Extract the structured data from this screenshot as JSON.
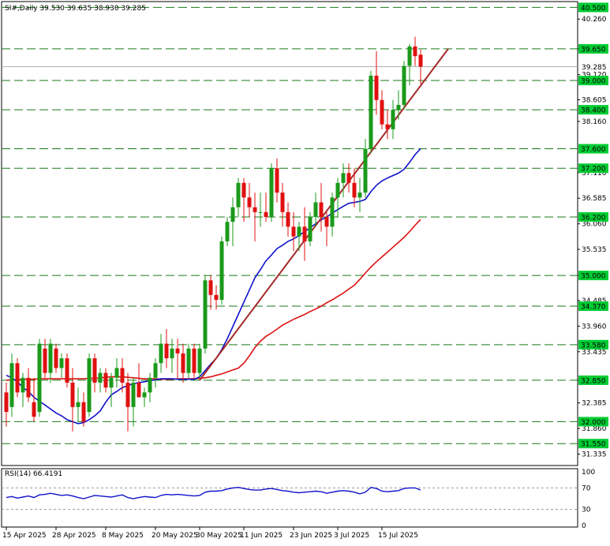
{
  "chart_data": {
    "type": "candlestick",
    "title": "SI#,Daily  39.530 39.635 38.930 39.285",
    "price_axis": {
      "ylim": [
        31.1,
        40.62
      ],
      "ticks": [
        "40.260",
        "39.650",
        "39.120",
        "38.605",
        "38.160",
        "37.110",
        "36.585",
        "36.060",
        "35.535",
        "35.000",
        "34.485",
        "33.960",
        "33.435",
        "32.850",
        "32.385",
        "31.860",
        "31.335"
      ]
    },
    "levels": [
      {
        "value": 40.5,
        "label": "40.500"
      },
      {
        "value": 39.65,
        "label": "39.650"
      },
      {
        "value": 39.0,
        "label": "39.000"
      },
      {
        "value": 38.4,
        "label": "38.400"
      },
      {
        "value": 37.6,
        "label": "37.600"
      },
      {
        "value": 37.2,
        "label": "37.200"
      },
      {
        "value": 36.2,
        "label": "36.200"
      },
      {
        "value": 35.0,
        "label": "35.000"
      },
      {
        "value": 34.37,
        "label": "34.370"
      },
      {
        "value": 33.58,
        "label": "33.580"
      },
      {
        "value": 32.85,
        "label": "32.850"
      },
      {
        "value": 32.0,
        "label": "32.000"
      },
      {
        "value": 31.55,
        "label": "31.550"
      }
    ],
    "current_price": {
      "value": 39.285,
      "label": "39.285"
    },
    "x_labels": [
      {
        "index": 0,
        "label": "15 Apr 2025"
      },
      {
        "index": 9,
        "label": "28 Apr 2025"
      },
      {
        "index": 18,
        "label": "8 May 2025"
      },
      {
        "index": 27,
        "label": "20 May 2025"
      },
      {
        "index": 35,
        "label": "30 May 2025"
      },
      {
        "index": 43,
        "label": "11 Jun 2025"
      },
      {
        "index": 52,
        "label": "23 Jun 2025"
      },
      {
        "index": 60,
        "label": "3 Jul 2025"
      },
      {
        "index": 68,
        "label": "15 Jul 2025"
      }
    ],
    "candles": [
      [
        32.6,
        32.8,
        31.9,
        32.2
      ],
      [
        32.3,
        33.4,
        32.1,
        33.2
      ],
      [
        33.2,
        33.3,
        32.5,
        32.6
      ],
      [
        32.6,
        33.0,
        32.3,
        32.9
      ],
      [
        32.9,
        33.1,
        32.4,
        32.5
      ],
      [
        32.4,
        32.9,
        32.0,
        32.1
      ],
      [
        32.2,
        33.7,
        32.1,
        33.6
      ],
      [
        33.5,
        33.7,
        32.9,
        33.0
      ],
      [
        33.0,
        33.7,
        32.8,
        33.6
      ],
      [
        33.5,
        33.6,
        33.0,
        33.1
      ],
      [
        33.1,
        33.4,
        32.9,
        33.3
      ],
      [
        33.3,
        33.4,
        32.7,
        32.8
      ],
      [
        32.8,
        33.1,
        31.8,
        32.3
      ],
      [
        32.3,
        32.7,
        32.0,
        32.4
      ],
      [
        32.4,
        32.6,
        31.9,
        32.0
      ],
      [
        32.2,
        33.4,
        32.1,
        33.3
      ],
      [
        33.3,
        33.4,
        32.6,
        32.8
      ],
      [
        32.8,
        33.1,
        32.6,
        33.0
      ],
      [
        33.0,
        33.1,
        32.6,
        32.7
      ],
      [
        32.7,
        33.0,
        32.3,
        32.9
      ],
      [
        32.9,
        33.3,
        32.7,
        33.1
      ],
      [
        33.1,
        33.3,
        32.6,
        32.8
      ],
      [
        32.8,
        33.0,
        31.8,
        32.3
      ],
      [
        32.3,
        32.9,
        31.9,
        32.8
      ],
      [
        32.8,
        33.2,
        32.5,
        32.5
      ],
      [
        32.5,
        32.7,
        32.3,
        32.6
      ],
      [
        32.6,
        33.0,
        32.4,
        32.9
      ],
      [
        32.9,
        33.3,
        32.7,
        33.2
      ],
      [
        33.2,
        33.8,
        33.0,
        33.6
      ],
      [
        33.6,
        33.9,
        33.1,
        33.3
      ],
      [
        33.3,
        33.7,
        33.0,
        33.5
      ],
      [
        33.5,
        33.7,
        32.9,
        33.4
      ],
      [
        33.4,
        33.6,
        32.8,
        33.0
      ],
      [
        33.0,
        33.6,
        32.9,
        33.5
      ],
      [
        33.5,
        33.6,
        32.9,
        33.0
      ],
      [
        33.0,
        33.6,
        32.9,
        33.5
      ],
      [
        33.5,
        35.0,
        33.4,
        34.9
      ],
      [
        34.9,
        35.0,
        34.3,
        34.6
      ],
      [
        34.6,
        34.8,
        34.3,
        34.5
      ],
      [
        34.5,
        35.8,
        34.4,
        35.7
      ],
      [
        35.7,
        36.2,
        35.6,
        36.1
      ],
      [
        36.1,
        36.6,
        35.6,
        36.4
      ],
      [
        36.4,
        37.0,
        36.2,
        36.9
      ],
      [
        36.9,
        37.0,
        36.1,
        36.6
      ],
      [
        36.6,
        36.9,
        36.2,
        36.4
      ],
      [
        36.4,
        36.7,
        35.7,
        36.3
      ],
      [
        36.3,
        36.7,
        36.0,
        36.3
      ],
      [
        36.3,
        36.7,
        36.1,
        36.2
      ],
      [
        36.2,
        37.3,
        36.1,
        37.2
      ],
      [
        37.2,
        37.4,
        36.5,
        36.7
      ],
      [
        36.7,
        36.9,
        36.0,
        36.3
      ],
      [
        36.3,
        36.5,
        35.8,
        36.0
      ],
      [
        36.0,
        36.3,
        35.5,
        35.8
      ],
      [
        35.8,
        36.1,
        35.5,
        36.0
      ],
      [
        36.0,
        36.4,
        35.3,
        35.7
      ],
      [
        35.7,
        36.3,
        35.6,
        36.2
      ],
      [
        36.2,
        36.7,
        36.0,
        36.5
      ],
      [
        36.5,
        36.9,
        35.9,
        36.2
      ],
      [
        36.2,
        36.3,
        35.6,
        36.0
      ],
      [
        36.0,
        36.7,
        35.8,
        36.6
      ],
      [
        36.6,
        37.0,
        36.2,
        36.9
      ],
      [
        36.9,
        37.3,
        36.6,
        37.1
      ],
      [
        37.1,
        37.3,
        36.7,
        36.9
      ],
      [
        36.9,
        37.2,
        36.4,
        36.6
      ],
      [
        36.6,
        37.0,
        36.3,
        36.7
      ],
      [
        36.7,
        37.8,
        36.6,
        37.6
      ],
      [
        37.6,
        39.2,
        37.5,
        39.1
      ],
      [
        39.1,
        39.6,
        38.3,
        38.6
      ],
      [
        38.6,
        38.8,
        38.0,
        38.1
      ],
      [
        38.1,
        38.4,
        37.8,
        38.0
      ],
      [
        38.0,
        38.6,
        37.8,
        38.4
      ],
      [
        38.4,
        38.8,
        38.2,
        38.5
      ],
      [
        38.5,
        39.4,
        38.4,
        39.3
      ],
      [
        39.3,
        39.75,
        38.9,
        39.7
      ],
      [
        39.7,
        39.9,
        39.3,
        39.5
      ],
      [
        39.53,
        39.635,
        38.93,
        39.285
      ]
    ],
    "ma_fast": [
      32.95,
      32.9,
      32.82,
      32.7,
      32.62,
      32.5,
      32.42,
      32.34,
      32.26,
      32.18,
      32.12,
      32.04,
      32.0,
      31.96,
      31.98,
      32.04,
      32.12,
      32.22,
      32.4,
      32.55,
      32.62,
      32.7,
      32.74,
      32.78,
      32.8,
      32.82,
      32.84,
      32.86,
      32.88,
      32.88,
      32.88,
      32.87,
      32.87,
      32.87,
      32.87,
      32.92,
      33.05,
      33.18,
      33.3,
      33.48,
      33.7,
      33.95,
      34.2,
      34.45,
      34.7,
      34.95,
      35.12,
      35.3,
      35.42,
      35.55,
      35.62,
      35.7,
      35.75,
      35.82,
      35.9,
      35.98,
      36.06,
      36.14,
      36.2,
      36.28,
      36.35,
      36.42,
      36.48,
      36.5,
      36.52,
      36.56,
      36.72,
      36.85,
      36.94,
      37.0,
      37.05,
      37.1,
      37.18,
      37.32,
      37.48,
      37.6
    ],
    "ma_slow": [
      32.85,
      32.86,
      32.86,
      32.87,
      32.87,
      32.87,
      32.88,
      32.88,
      32.88,
      32.88,
      32.88,
      32.88,
      32.88,
      32.88,
      32.88,
      32.89,
      32.89,
      32.9,
      32.91,
      32.92,
      32.92,
      32.92,
      32.91,
      32.9,
      32.89,
      32.88,
      32.88,
      32.88,
      32.87,
      32.87,
      32.87,
      32.88,
      32.88,
      32.88,
      32.88,
      32.89,
      32.9,
      32.92,
      32.95,
      32.98,
      33.02,
      33.06,
      33.1,
      33.2,
      33.35,
      33.52,
      33.65,
      33.75,
      33.82,
      33.9,
      33.98,
      34.04,
      34.1,
      34.15,
      34.2,
      34.26,
      34.31,
      34.37,
      34.44,
      34.5,
      34.57,
      34.64,
      34.72,
      34.8,
      34.92,
      35.05,
      35.17,
      35.28,
      35.38,
      35.48,
      35.58,
      35.68,
      35.78,
      35.9,
      36.03,
      36.15
    ],
    "trendline": {
      "from_index": 35,
      "from_value": 32.85,
      "to_index": 80,
      "to_value": 39.65
    },
    "rsi": {
      "label": "RSI(14) 66.4191",
      "ticks": [
        "100",
        "70",
        "30",
        "0"
      ],
      "levels": [
        70,
        30
      ],
      "ylim": [
        0,
        100
      ],
      "values": [
        52,
        54,
        51,
        53,
        55,
        52,
        57,
        58,
        60,
        58,
        56,
        57,
        55,
        52,
        50,
        53,
        56,
        55,
        54,
        53,
        55,
        57,
        52,
        50,
        52,
        54,
        53,
        52,
        56,
        58,
        57,
        58,
        57,
        56,
        55,
        56,
        62,
        64,
        64,
        65,
        68,
        70,
        71,
        69,
        67,
        66,
        66,
        68,
        69,
        67,
        65,
        64,
        62,
        61,
        62,
        63,
        64,
        63,
        60,
        62,
        64,
        65,
        64,
        62,
        59,
        62,
        71,
        69,
        64,
        63,
        64,
        65,
        69,
        70,
        70,
        66
      ]
    }
  }
}
